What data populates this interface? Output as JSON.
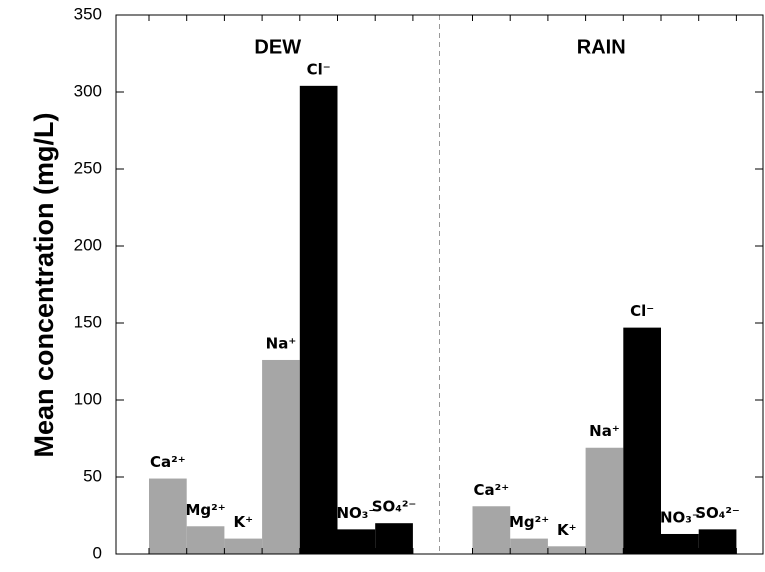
{
  "chart_data": {
    "type": "bar",
    "ylabel": "Mean concentration (mg/L)",
    "ylim": [
      0,
      350
    ],
    "yticks": [
      0,
      50,
      100,
      150,
      200,
      250,
      300,
      350
    ],
    "panels": [
      {
        "title": "DEW",
        "categories": [
          "Ca²⁺",
          "Mg²⁺",
          "K⁺",
          "Na⁺",
          "Cl⁻",
          "NO₃⁻",
          "SO₄²⁻"
        ],
        "values": [
          49,
          18,
          10,
          126,
          304,
          16,
          20
        ],
        "colors": [
          "#a6a6a6",
          "#a6a6a6",
          "#a6a6a6",
          "#a6a6a6",
          "#000000",
          "#000000",
          "#000000"
        ]
      },
      {
        "title": "RAIN",
        "categories": [
          "Ca²⁺",
          "Mg²⁺",
          "K⁺",
          "Na⁺",
          "Cl⁻",
          "NO₃⁻",
          "SO₄²⁻"
        ],
        "values": [
          31,
          10,
          5,
          69,
          147,
          13,
          16
        ],
        "colors": [
          "#a6a6a6",
          "#a6a6a6",
          "#a6a6a6",
          "#a6a6a6",
          "#000000",
          "#000000",
          "#000000"
        ]
      }
    ]
  }
}
